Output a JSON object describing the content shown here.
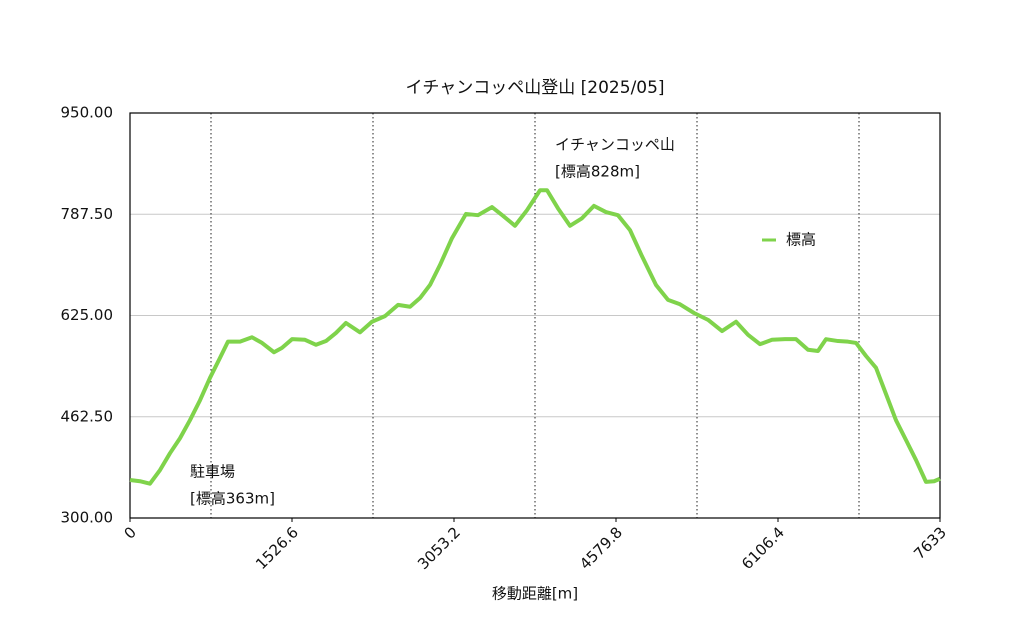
{
  "chart_data": {
    "type": "line",
    "title": "イチャンコッペ山登山 [2025/05]",
    "x_label": "移動距離[m]",
    "xlim": [
      0,
      7633
    ],
    "xticks": [
      0,
      1526.6,
      3053.2,
      4579.8,
      6106.4,
      7633
    ],
    "xminor": [
      763.3,
      2289.9,
      3816.5,
      5343.1,
      6869.7
    ],
    "ylim": [
      300,
      950
    ],
    "yticks": [
      {
        "value": 300,
        "label": "300.00"
      },
      {
        "value": 462.5,
        "label": "462.50"
      },
      {
        "value": 625,
        "label": "625.00"
      },
      {
        "value": 787.5,
        "label": "787.50"
      },
      {
        "value": 950,
        "label": "950.00"
      }
    ],
    "grid": true,
    "legend": "upper right",
    "series": [
      {
        "name": "標高",
        "color": "#7fd34b",
        "x": [
          0,
          94,
          188,
          283,
          377,
          471,
          565,
          660,
          754,
          848,
          923,
          1037,
          1150,
          1244,
          1357,
          1432,
          1527,
          1649,
          1753,
          1847,
          1941,
          2035,
          2167,
          2280,
          2403,
          2526,
          2639,
          2733,
          2827,
          2921,
          3034,
          3166,
          3279,
          3411,
          3515,
          3628,
          3741,
          3864,
          3930,
          4033,
          4146,
          4259,
          4372,
          4485,
          4598,
          4712,
          4825,
          4957,
          5070,
          5183,
          5315,
          5447,
          5579,
          5711,
          5824,
          5937,
          6050,
          6172,
          6276,
          6389,
          6483,
          6559,
          6672,
          6766,
          6842,
          6936,
          7030,
          7124,
          7218,
          7313,
          7407,
          7501,
          7577,
          7633
        ],
        "values": [
          361,
          359,
          355,
          377,
          404,
          428,
          457,
          489,
          525,
          557,
          583,
          583,
          590,
          581,
          566,
          573,
          587,
          586,
          578,
          584,
          597,
          613,
          598,
          615,
          624,
          642,
          639,
          653,
          674,
          706,
          749,
          788,
          786,
          799,
          785,
          769,
          794,
          826,
          826,
          797,
          769,
          781,
          801,
          791,
          786,
          762,
          720,
          674,
          650,
          643,
          629,
          618,
          600,
          615,
          594,
          579,
          586,
          587,
          587,
          570,
          568,
          587,
          584,
          583,
          581,
          560,
          541,
          499,
          457,
          425,
          393,
          358,
          359,
          363
        ]
      }
    ],
    "annotations": [
      {
        "lines": [
          "イチャンコッペ山",
          "[標高828m]"
        ]
      },
      {
        "lines": [
          "駐車場",
          "[標高363m]"
        ]
      }
    ]
  }
}
